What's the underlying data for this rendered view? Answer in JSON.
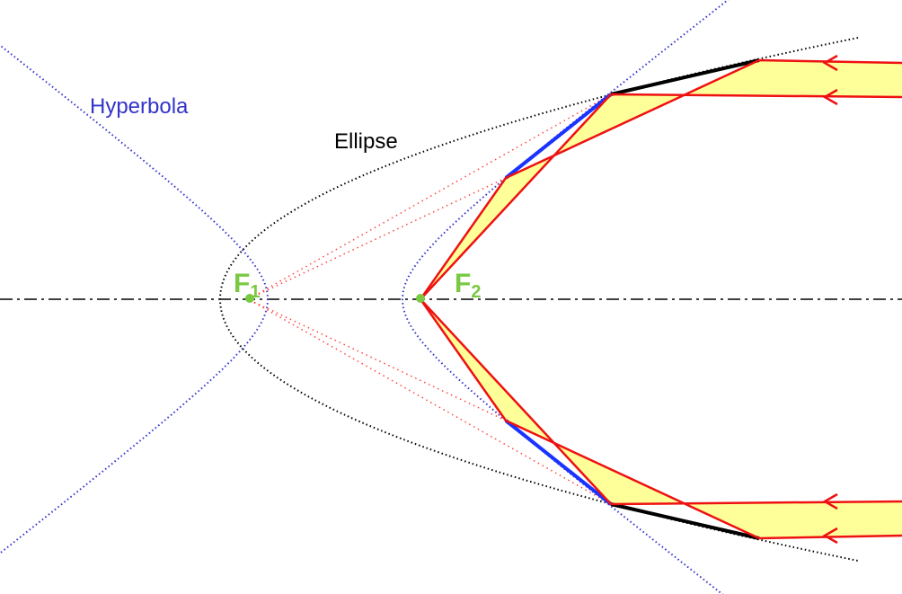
{
  "labels": {
    "hyperbola": "Hyperbola",
    "ellipse": "Ellipse",
    "f1": {
      "letter": "F",
      "subscript": "1"
    },
    "f2": {
      "letter": "F",
      "subscript": "2"
    }
  }
}
